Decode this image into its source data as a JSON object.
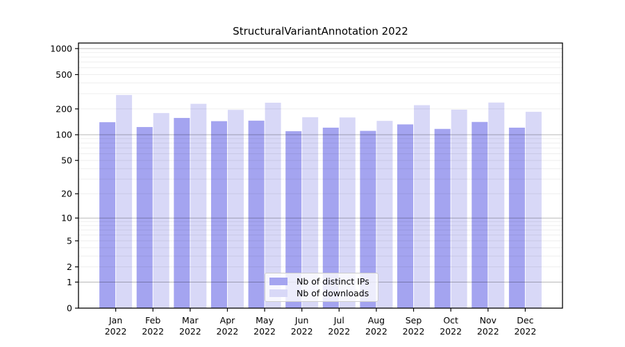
{
  "chart_data": {
    "type": "bar",
    "title": "StructuralVariantAnnotation 2022",
    "categories": [
      "Jan",
      "Feb",
      "Mar",
      "Apr",
      "May",
      "Jun",
      "Jul",
      "Aug",
      "Sep",
      "Oct",
      "Nov",
      "Dec"
    ],
    "year_label": "2022",
    "series": [
      {
        "name": "Nb of distinct IPs",
        "color": "#a4a4f0",
        "values": [
          140,
          123,
          157,
          144,
          146,
          110,
          121,
          111,
          132,
          117,
          141,
          121
        ]
      },
      {
        "name": "Nb of downloads",
        "color": "#d8d8f7",
        "values": [
          290,
          179,
          229,
          195,
          236,
          160,
          159,
          145,
          221,
          196,
          237,
          185
        ]
      }
    ],
    "yticks": [
      0,
      1,
      2,
      5,
      10,
      20,
      50,
      100,
      200,
      500,
      1000
    ],
    "ylim": [
      0,
      1000
    ],
    "scale": "log1p",
    "grid": "horizontal major+minor",
    "legend_position": "bottom-center",
    "colors": {
      "frame": "#000000",
      "major_gridline": "rgba(0,0,0,0.28)",
      "minor_gridline": "rgba(0,0,0,0.065)"
    }
  }
}
